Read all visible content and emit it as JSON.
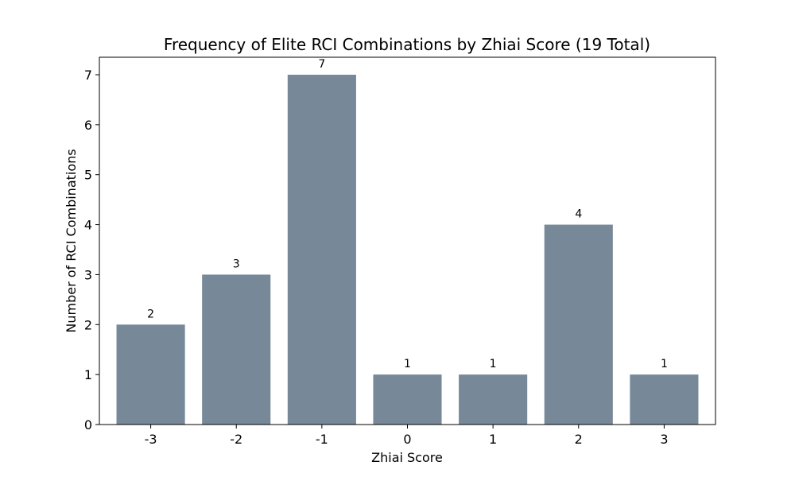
{
  "chart_data": {
    "type": "bar",
    "title": "Frequency of Elite RCI Combinations by Zhiai Score (19 Total)",
    "xlabel": "Zhiai Score",
    "ylabel": "Number of RCI Combinations",
    "categories": [
      "-3",
      "-2",
      "-1",
      "0",
      "1",
      "2",
      "3"
    ],
    "values": [
      2,
      3,
      7,
      1,
      1,
      4,
      1
    ],
    "ylim": [
      0,
      7.35
    ],
    "yticks": [
      0,
      1,
      2,
      3,
      4,
      5,
      6,
      7
    ],
    "bar_color": "#778899",
    "grid": false,
    "data_labels": true
  }
}
